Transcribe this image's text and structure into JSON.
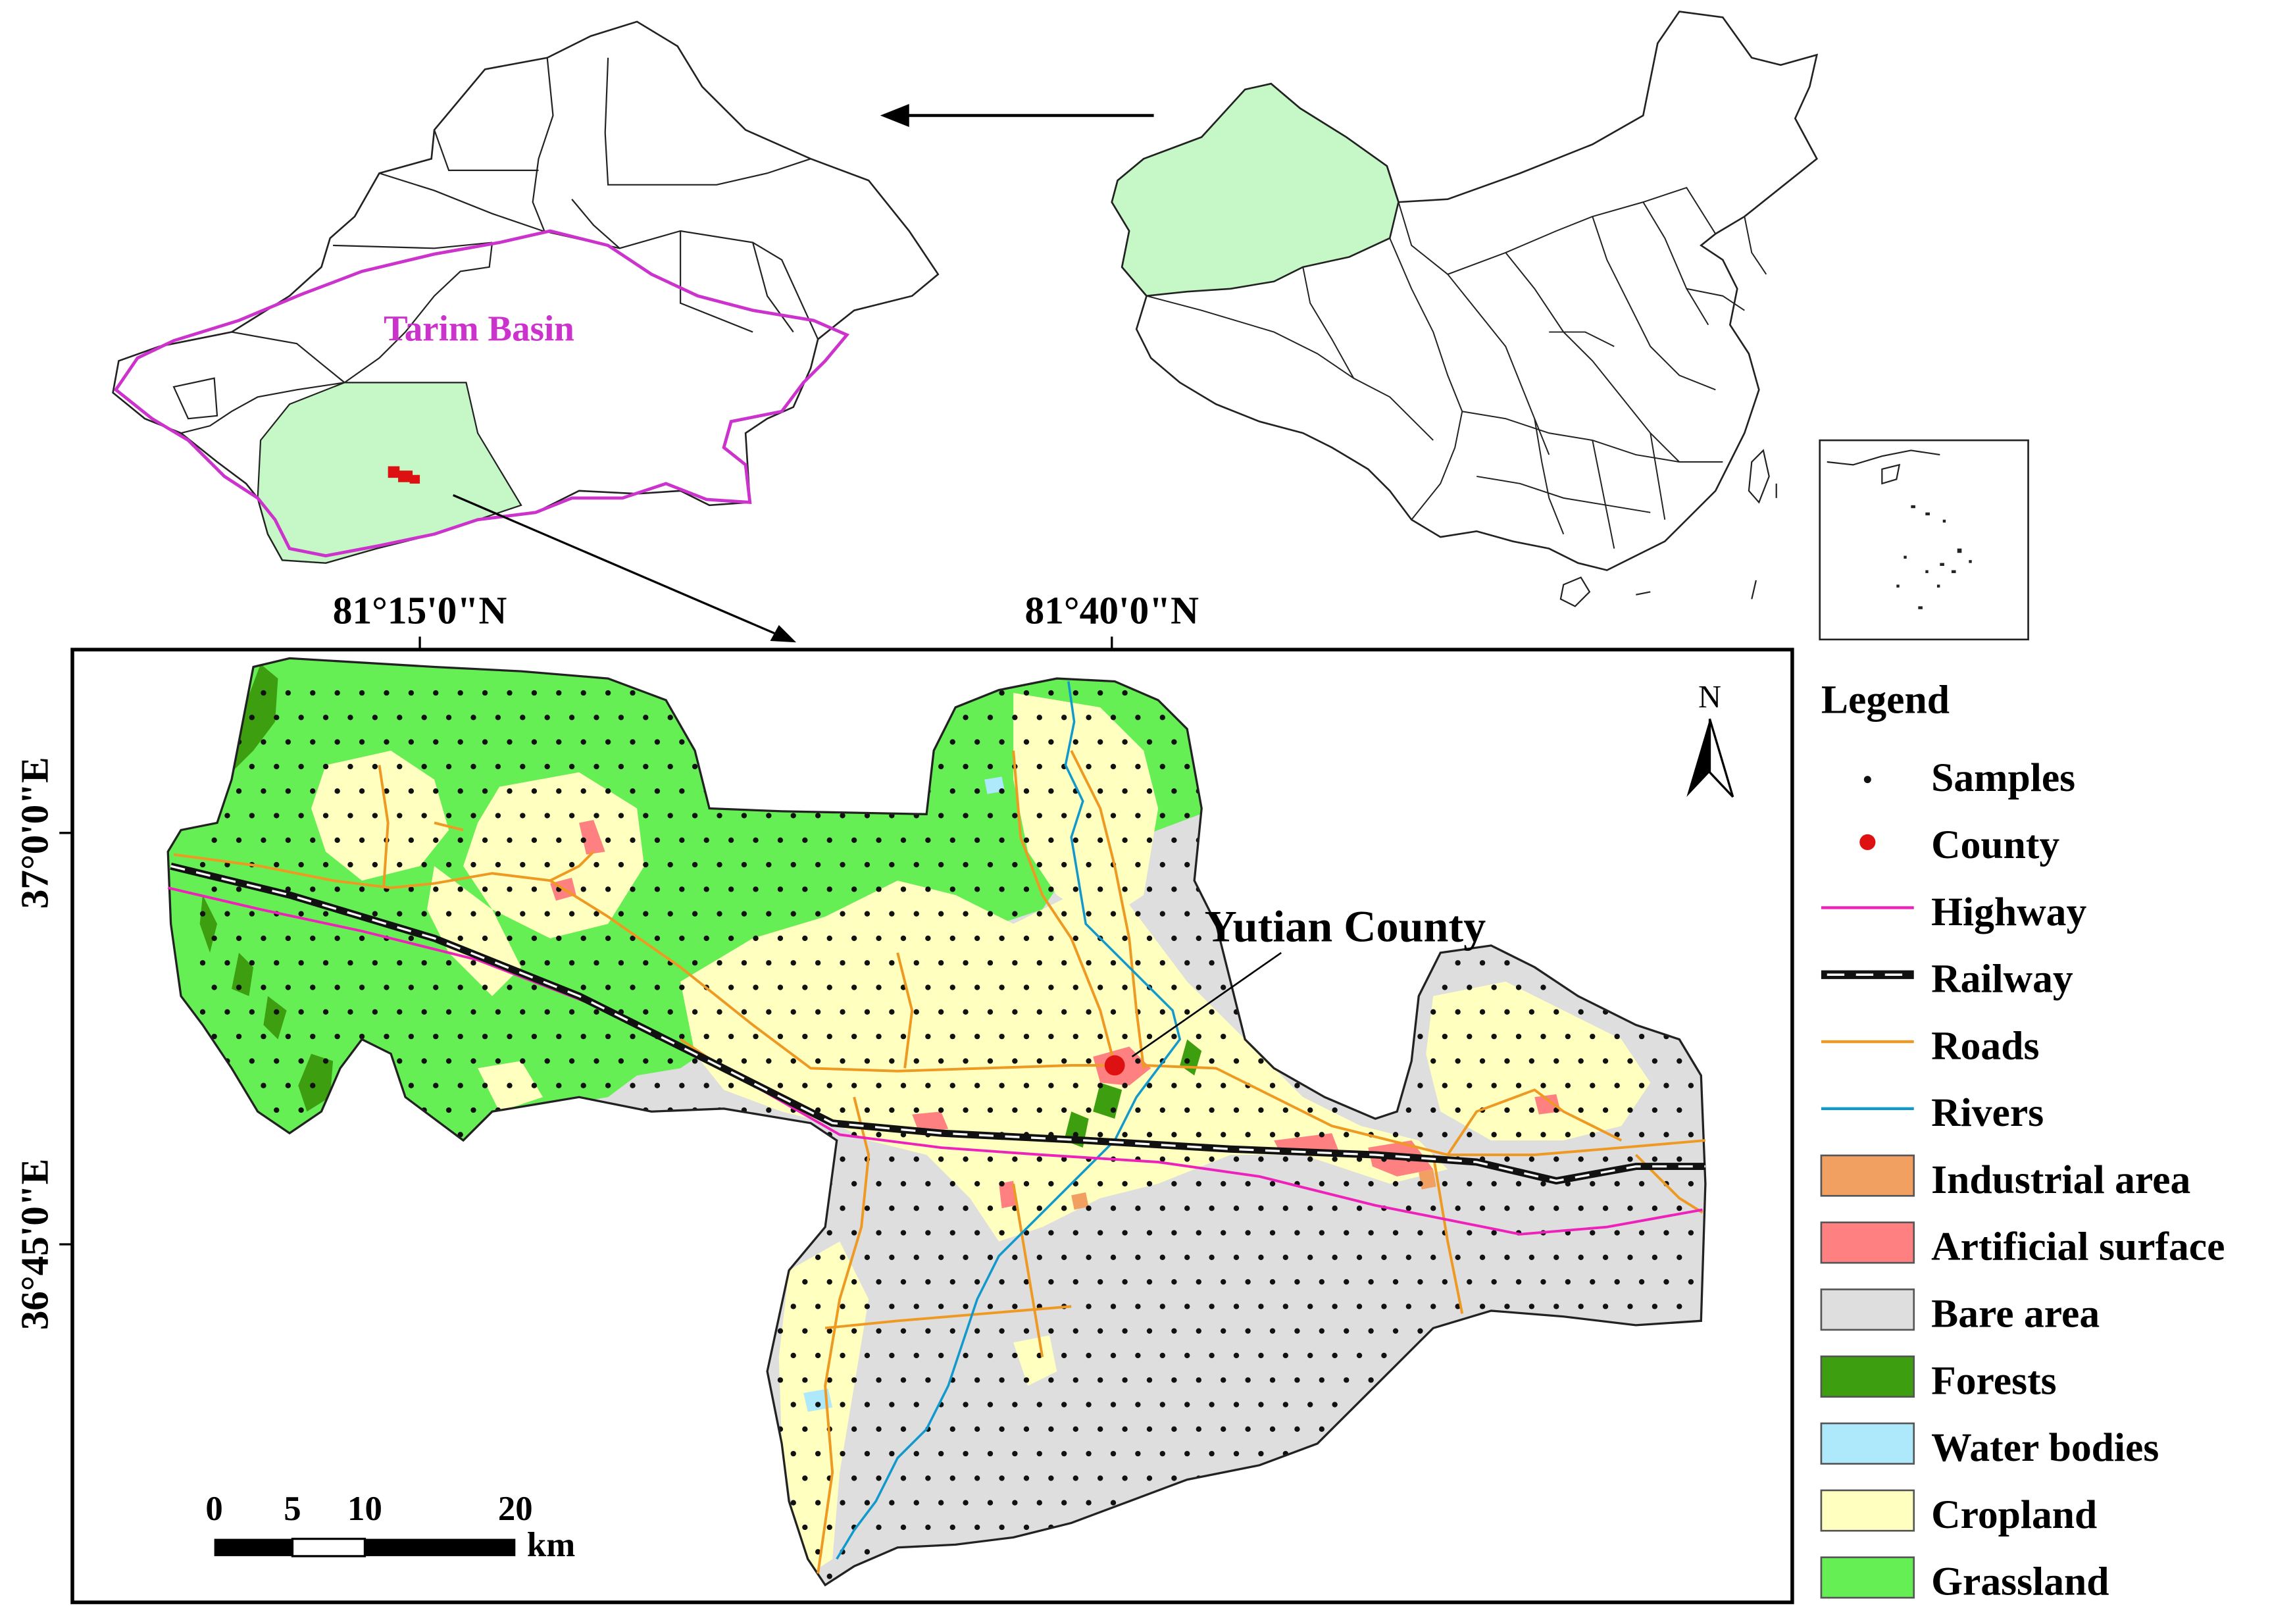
{
  "colors": {
    "basin_outline": "#cc33cc",
    "xinjiang_fill": "#c6f7c6",
    "county_red": "#dd1111",
    "highway": "#ee22bb",
    "railway": "#111111",
    "roads": "#ee9922",
    "rivers": "#1199cc",
    "industrial": "#f2a062",
    "artificial": "#ff8080",
    "bare": "#dedede",
    "forests": "#3d9e10",
    "water": "#aee8fb",
    "cropland": "#ffffc0",
    "grassland": "#66ee55"
  },
  "overview": {
    "basin_label": "Tarim Basin"
  },
  "axes": {
    "top_labels": [
      "81°15'0\"N",
      "81°40'0\"N"
    ],
    "left_labels": [
      "37°0'0\"E",
      "36°45'0\"E"
    ]
  },
  "map": {
    "county_label": "Yutian County",
    "north_label": "N"
  },
  "scalebar": {
    "ticks": [
      "0",
      "5",
      "10",
      "20"
    ],
    "unit": "km"
  },
  "legend": {
    "title": "Legend",
    "items": [
      {
        "label": "Samples",
        "kind": "dot",
        "icon": "sample-dot-icon"
      },
      {
        "label": "County",
        "kind": "county",
        "icon": "county-dot-icon"
      },
      {
        "label": "Highway",
        "kind": "line",
        "color_key": "highway"
      },
      {
        "label": "Railway",
        "kind": "rail"
      },
      {
        "label": "Roads",
        "kind": "line",
        "color_key": "roads"
      },
      {
        "label": "Rivers",
        "kind": "line",
        "color_key": "rivers"
      },
      {
        "label": "Industrial area",
        "kind": "patch",
        "color_key": "industrial"
      },
      {
        "label": "Artificial surface",
        "kind": "patch",
        "color_key": "artificial"
      },
      {
        "label": "Bare area",
        "kind": "patch",
        "color_key": "bare"
      },
      {
        "label": "Forests",
        "kind": "patch",
        "color_key": "forests"
      },
      {
        "label": "Water bodies",
        "kind": "patch",
        "color_key": "water"
      },
      {
        "label": "Cropland",
        "kind": "patch",
        "color_key": "cropland"
      },
      {
        "label": "Grassland",
        "kind": "patch",
        "color_key": "grassland"
      }
    ]
  }
}
